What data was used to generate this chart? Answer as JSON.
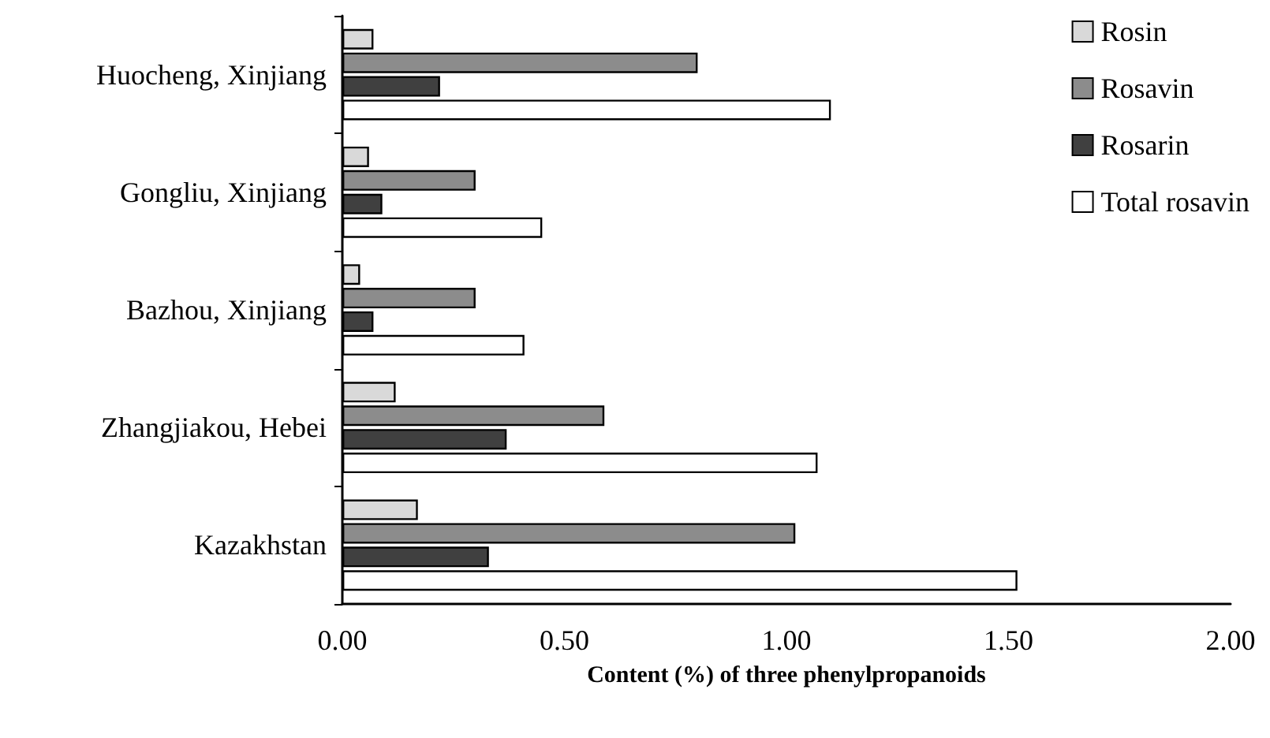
{
  "chart_data": {
    "type": "bar",
    "orientation": "horizontal",
    "xlabel": "Content (%) of three phenylpropanoids",
    "categories": [
      "Huocheng, Xinjiang",
      "Gongliu, Xinjiang",
      "Bazhou, Xinjiang",
      "Zhangjiakou, Hebei",
      "Kazakhstan"
    ],
    "series": [
      {
        "name": "Rosin",
        "color": "#d9d9d9",
        "values": [
          0.07,
          0.06,
          0.04,
          0.12,
          0.17
        ]
      },
      {
        "name": "Rosavin",
        "color": "#8c8c8c",
        "values": [
          0.8,
          0.3,
          0.3,
          0.59,
          1.02
        ]
      },
      {
        "name": "Rosarin",
        "color": "#404040",
        "values": [
          0.22,
          0.09,
          0.07,
          0.37,
          0.33
        ]
      },
      {
        "name": "Total rosavin",
        "color": "#ffffff",
        "values": [
          1.1,
          0.45,
          0.41,
          1.07,
          1.52
        ]
      }
    ],
    "xlim": [
      0,
      2
    ],
    "xticks": [
      {
        "value": 0,
        "label": "0.00"
      },
      {
        "value": 0.5,
        "label": "0.50"
      },
      {
        "value": 1,
        "label": "1.00"
      },
      {
        "value": 1.5,
        "label": "1.50"
      },
      {
        "value": 2,
        "label": "2.00"
      }
    ],
    "grid": false,
    "legend": "top right"
  }
}
